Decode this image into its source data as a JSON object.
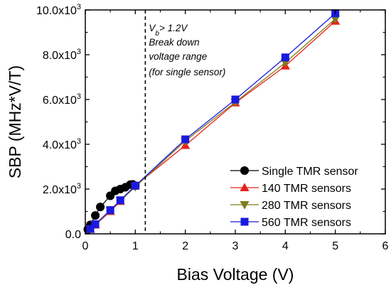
{
  "chart_data": {
    "type": "line",
    "title": "",
    "xlabel": "Bias Voltage (V)",
    "ylabel": "SBP (MHz*V/T)",
    "xlim": [
      0,
      6
    ],
    "ylim": [
      0,
      10000
    ],
    "x_ticks": [
      0,
      1,
      2,
      3,
      4,
      5,
      6
    ],
    "x_tick_labels": [
      "0",
      "1",
      "2",
      "3",
      "4",
      "5",
      "6"
    ],
    "y_ticks": [
      0,
      2000,
      4000,
      6000,
      8000,
      10000
    ],
    "y_tick_labels": [
      {
        "base": "0.0",
        "exp": ""
      },
      {
        "base": "2.0x10",
        "exp": "3"
      },
      {
        "base": "4.0x10",
        "exp": "3"
      },
      {
        "base": "6.0x10",
        "exp": "3"
      },
      {
        "base": "8.0x10",
        "exp": "3"
      },
      {
        "base": "10.0x10",
        "exp": "3"
      }
    ],
    "grid": false,
    "legend_position": "bottom-right",
    "series": [
      {
        "name": "Single TMR sensor",
        "color": "#000000",
        "marker": "circle",
        "x": [
          0.05,
          0.1,
          0.2,
          0.3,
          0.5,
          0.6,
          0.7,
          0.8,
          0.9,
          0.95,
          1.0
        ],
        "y": [
          200,
          400,
          820,
          1200,
          1700,
          1920,
          2000,
          2080,
          2200,
          2210,
          2150
        ]
      },
      {
        "name": "140 TMR sensors",
        "color": "#e8221a",
        "marker": "triangle-up",
        "x": [
          0.1,
          0.2,
          0.5,
          0.7,
          1.0,
          2.0,
          3.0,
          4.0,
          5.0
        ],
        "y": [
          200,
          400,
          1000,
          1450,
          2150,
          3950,
          5850,
          7500,
          9500
        ]
      },
      {
        "name": "280 TMR sensors",
        "color": "#7e7d1c",
        "marker": "triangle-down",
        "x": [
          0.1,
          0.2,
          0.5,
          0.7,
          1.0,
          2.0,
          3.0,
          4.0,
          5.0
        ],
        "y": [
          200,
          420,
          1050,
          1480,
          2100,
          4150,
          5880,
          7650,
          9600
        ]
      },
      {
        "name": "560 TMR sensors",
        "color": "#1a1ae0",
        "marker": "square",
        "x": [
          0.1,
          0.2,
          0.5,
          0.7,
          1.0,
          2.0,
          3.0,
          4.0,
          5.0
        ],
        "y": [
          220,
          430,
          1060,
          1500,
          2150,
          4220,
          6000,
          7880,
          9850
        ]
      }
    ],
    "reference_line": {
      "x": 1.2,
      "style": "dashed"
    },
    "annotation": {
      "label_main": "V",
      "label_sub": "b",
      "label_rest": "> 1.2V",
      "lines": [
        "Break down",
        "voltage range",
        "(for single sensor)"
      ]
    }
  }
}
